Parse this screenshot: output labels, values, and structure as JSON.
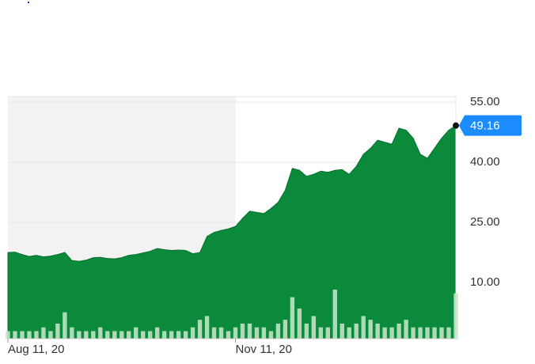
{
  "chart_data": {
    "type": "area",
    "categories": [
      "Aug 11, 20",
      null,
      null,
      null,
      null,
      null,
      null,
      null,
      null,
      null,
      null,
      null,
      null,
      null,
      null,
      null,
      null,
      null,
      null,
      null,
      null,
      null,
      null,
      null,
      null,
      null,
      null,
      null,
      null,
      null,
      null,
      null,
      "Nov 11, 20",
      null,
      null,
      null,
      null,
      null,
      null,
      null,
      null,
      null,
      null,
      null,
      null,
      null,
      null,
      null,
      null,
      null,
      null,
      null,
      null,
      null,
      null,
      null,
      null,
      null,
      null,
      null,
      null,
      null,
      null,
      null
    ],
    "values": [
      17.5,
      17.6,
      17.0,
      16.5,
      16.8,
      16.4,
      16.6,
      17.0,
      17.5,
      15.5,
      15.3,
      15.6,
      16.2,
      16.3,
      16.0,
      15.9,
      16.2,
      16.8,
      17.0,
      17.4,
      17.8,
      18.5,
      18.2,
      18.0,
      18.1,
      18.0,
      17.2,
      17.5,
      21.5,
      22.5,
      23.0,
      23.4,
      24.0,
      26.0,
      27.8,
      27.5,
      27.2,
      28.5,
      30.0,
      33.0,
      38.5,
      38.0,
      36.5,
      37.0,
      37.8,
      37.5,
      38.0,
      38.2,
      37.0,
      39.0,
      42.0,
      43.5,
      45.5,
      45.0,
      44.5,
      48.5,
      48.0,
      46.0,
      42.0,
      41.0,
      43.5,
      46.0,
      48.0,
      49.16
    ],
    "volume": [
      2,
      2,
      2,
      2,
      2,
      3,
      2,
      4,
      7,
      3,
      2,
      2,
      2,
      3,
      2,
      2,
      2,
      2,
      3,
      2,
      2,
      3,
      2,
      2,
      2,
      2,
      3,
      5,
      6,
      3,
      3,
      2,
      3,
      4,
      4,
      3,
      3,
      2,
      4,
      5,
      11,
      8,
      4,
      6,
      3,
      3,
      13,
      4,
      3,
      4,
      6,
      5,
      4,
      3,
      3,
      4,
      5,
      3,
      3,
      3,
      3,
      3,
      3,
      12
    ],
    "color": "#0a8a3a",
    "ylim": [
      -4,
      56.4
    ],
    "yticks": [
      {
        "value": 55,
        "label": "55.00"
      },
      {
        "value": 40,
        "label": "40.00"
      },
      {
        "value": 25,
        "label": "25.00"
      },
      {
        "value": 10,
        "label": "10.00"
      }
    ],
    "grid": true
  }
}
